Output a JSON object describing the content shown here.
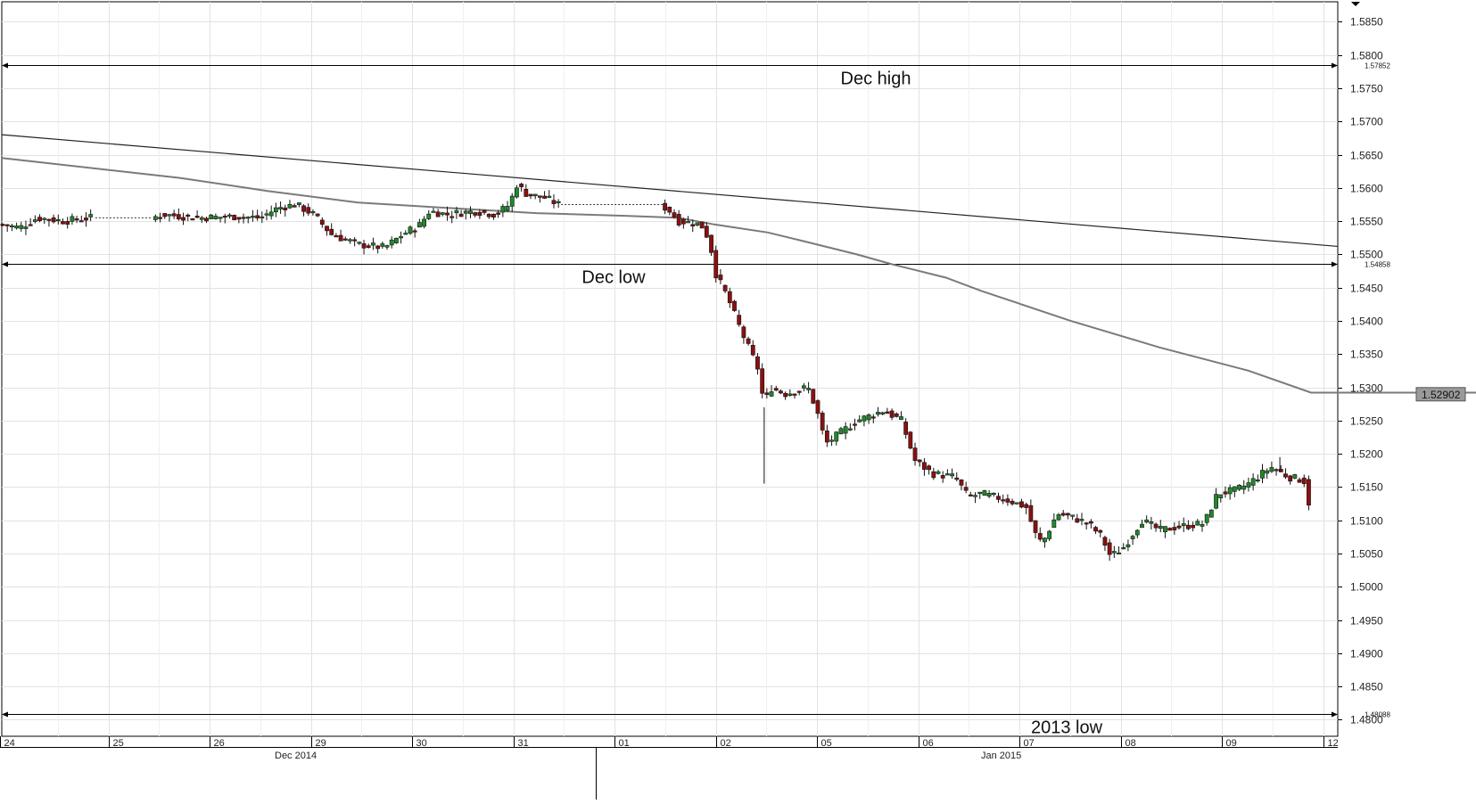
{
  "chart_data": {
    "type": "candlestick",
    "title": "",
    "xlabel": "",
    "ylabel": "",
    "ylim": [
      1.4775,
      1.588
    ],
    "ytick_step": 0.005,
    "grid": true,
    "x_months": [
      "Dec 2014",
      "Jan 2015"
    ],
    "x_days": [
      "24",
      "25",
      "26",
      "29",
      "30",
      "31",
      "01",
      "02",
      "05",
      "06",
      "07",
      "08",
      "09",
      "12"
    ],
    "current_price": "1.52902",
    "levels": [
      {
        "label": "Dec high",
        "value": 1.57852,
        "value_text": "1.57852"
      },
      {
        "label": "Dec low",
        "value": 1.54858,
        "value_text": "1.54858"
      },
      {
        "label": "2013 low",
        "value": 1.48088,
        "value_text": "1.48088"
      }
    ],
    "trendline": [
      [
        0,
        1.568
      ],
      [
        1500,
        1.5512
      ]
    ],
    "moving_average": [
      [
        0,
        1.5645
      ],
      [
        200,
        1.5615
      ],
      [
        300,
        1.5595
      ],
      [
        400,
        1.5578
      ],
      [
        500,
        1.557
      ],
      [
        600,
        1.5562
      ],
      [
        700,
        1.5558
      ],
      [
        760,
        1.5555
      ],
      [
        800,
        1.5545
      ],
      [
        860,
        1.5533
      ],
      [
        900,
        1.552
      ],
      [
        960,
        1.55
      ],
      [
        1000,
        1.5485
      ],
      [
        1060,
        1.5465
      ],
      [
        1100,
        1.5445
      ],
      [
        1200,
        1.54
      ],
      [
        1300,
        1.536
      ],
      [
        1400,
        1.5325
      ],
      [
        1470,
        1.5292
      ],
      [
        1500,
        1.5292
      ]
    ],
    "ohlc_path": [
      [
        0,
        1.5545
      ],
      [
        20,
        1.554
      ],
      [
        40,
        1.5555
      ],
      [
        70,
        1.555
      ],
      [
        100,
        1.5555
      ],
      [
        170,
        1.5555
      ],
      [
        180,
        1.556
      ],
      [
        220,
        1.5555
      ],
      [
        260,
        1.5557
      ],
      [
        290,
        1.5555
      ],
      [
        310,
        1.557
      ],
      [
        330,
        1.5575
      ],
      [
        350,
        1.556
      ],
      [
        370,
        1.553
      ],
      [
        400,
        1.5515
      ],
      [
        430,
        1.551
      ],
      [
        450,
        1.553
      ],
      [
        470,
        1.5545
      ],
      [
        480,
        1.5565
      ],
      [
        500,
        1.556
      ],
      [
        530,
        1.5565
      ],
      [
        555,
        1.556
      ],
      [
        570,
        1.5575
      ],
      [
        578,
        1.5605
      ],
      [
        590,
        1.559
      ],
      [
        610,
        1.5585
      ],
      [
        625,
        1.5575
      ],
      [
        740,
        1.5575
      ],
      [
        750,
        1.5565
      ],
      [
        760,
        1.555
      ],
      [
        785,
        1.5545
      ],
      [
        795,
        1.552
      ],
      [
        800,
        1.5475
      ],
      [
        815,
        1.5435
      ],
      [
        830,
        1.5385
      ],
      [
        845,
        1.534
      ],
      [
        850,
        1.5325
      ],
      [
        856,
        1.527
      ],
      [
        862,
        1.53
      ],
      [
        880,
        1.529
      ],
      [
        905,
        1.53
      ],
      [
        915,
        1.5265
      ],
      [
        925,
        1.5215
      ],
      [
        940,
        1.523
      ],
      [
        960,
        1.525
      ],
      [
        990,
        1.5265
      ],
      [
        1010,
        1.525
      ],
      [
        1025,
        1.519
      ],
      [
        1045,
        1.517
      ],
      [
        1070,
        1.5165
      ],
      [
        1085,
        1.5135
      ],
      [
        1100,
        1.514
      ],
      [
        1130,
        1.513
      ],
      [
        1150,
        1.512
      ],
      [
        1160,
        1.508
      ],
      [
        1168,
        1.5065
      ],
      [
        1185,
        1.511
      ],
      [
        1200,
        1.5105
      ],
      [
        1220,
        1.5095
      ],
      [
        1235,
        1.5075
      ],
      [
        1245,
        1.5045
      ],
      [
        1260,
        1.506
      ],
      [
        1280,
        1.51
      ],
      [
        1300,
        1.5085
      ],
      [
        1320,
        1.509
      ],
      [
        1350,
        1.5095
      ],
      [
        1365,
        1.514
      ],
      [
        1385,
        1.5145
      ],
      [
        1400,
        1.5155
      ],
      [
        1425,
        1.518
      ],
      [
        1445,
        1.5165
      ],
      [
        1462,
        1.516
      ],
      [
        1470,
        1.511
      ]
    ],
    "wicks": [
      [
        856,
        1.5155
      ],
      [
        1435,
        1.5195
      ]
    ]
  }
}
